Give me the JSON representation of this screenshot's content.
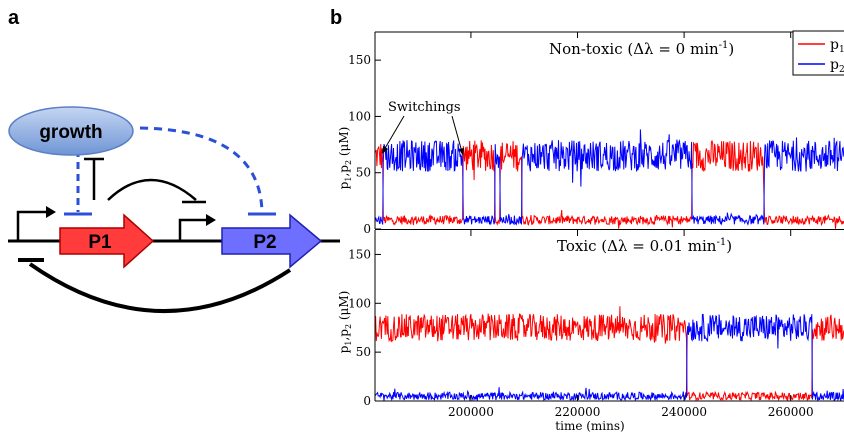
{
  "panel_a": {
    "letter": "a",
    "growth_label": "growth",
    "gene1_label": "P1",
    "gene2_label": "P2",
    "colors": {
      "growth_fill": "#8fb0e0",
      "gene1": "#ff3b3b",
      "gene2": "#6f6fff",
      "inhibition_dashed": "#2b4fd6"
    }
  },
  "panel_b": {
    "letter": "b",
    "x_ticks": [
      "200000",
      "220000",
      "240000",
      "260000"
    ],
    "x_label": "time (mins)",
    "legend": [
      {
        "label": "p",
        "sub": "1",
        "color": "#ff0000"
      },
      {
        "label": "p",
        "sub": "2",
        "color": "#0000ff"
      }
    ]
  },
  "chart_data": [
    {
      "type": "line",
      "title": "Non-toxic (Δλ = 0 min",
      "title_sup": "-1",
      "title_end": ")",
      "ylabel": "p",
      "ylabel_sub1": "1",
      "ylabel_mid": ",p",
      "ylabel_sub2": "2",
      "ylabel_end": " (μM)",
      "y_ticks": [
        "0",
        "50",
        "100",
        "150"
      ],
      "xlim": [
        182000,
        270000
      ],
      "ylim": [
        0,
        175
      ],
      "annotation": "Switchings",
      "segments": [
        {
          "x0": 182000,
          "x1": 183500,
          "high": "p1"
        },
        {
          "x0": 183500,
          "x1": 198500,
          "high": "p2"
        },
        {
          "x0": 198500,
          "x1": 204500,
          "high": "p1"
        },
        {
          "x0": 204500,
          "x1": 205500,
          "high": "p2"
        },
        {
          "x0": 205500,
          "x1": 209500,
          "high": "p1"
        },
        {
          "x0": 209500,
          "x1": 241500,
          "high": "p2"
        },
        {
          "x0": 241500,
          "x1": 255000,
          "high": "p1"
        },
        {
          "x0": 255000,
          "x1": 270000,
          "high": "p2"
        }
      ],
      "high_level": 65,
      "low_level": 8,
      "series": [
        {
          "name": "p1",
          "color": "#ff0000"
        },
        {
          "name": "p2",
          "color": "#0000ff"
        }
      ]
    },
    {
      "type": "line",
      "title": "Toxic (Δλ = 0.01 min",
      "title_sup": "-1",
      "title_end": ")",
      "ylabel": "p",
      "ylabel_sub1": "1",
      "ylabel_mid": ",p",
      "ylabel_sub2": "2",
      "ylabel_end": " (μM)",
      "y_ticks": [
        "0",
        "50",
        "100",
        "150"
      ],
      "xlim": [
        182000,
        270000
      ],
      "ylim": [
        0,
        175
      ],
      "segments": [
        {
          "x0": 182000,
          "x1": 240500,
          "high": "p1"
        },
        {
          "x0": 240500,
          "x1": 264000,
          "high": "p2"
        },
        {
          "x0": 264000,
          "x1": 270000,
          "high": "p1"
        }
      ],
      "high_level": 75,
      "low_level": 5,
      "series": [
        {
          "name": "p1",
          "color": "#ff0000"
        },
        {
          "name": "p2",
          "color": "#0000ff"
        }
      ]
    }
  ]
}
